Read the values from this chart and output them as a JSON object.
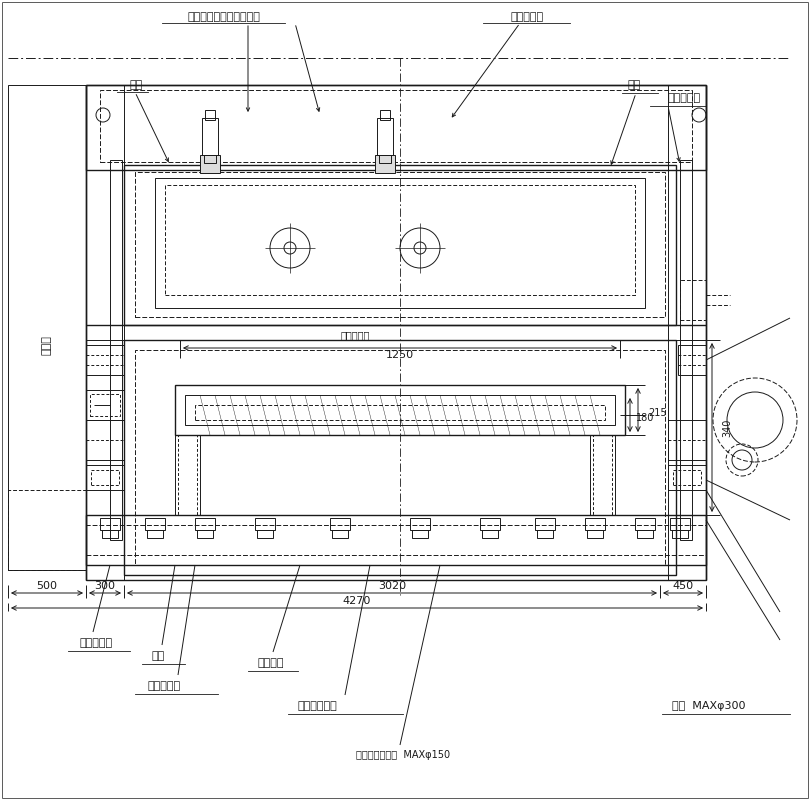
{
  "bg_color": "#ffffff",
  "line_color": "#1a1a1a",
  "fig_width": 8.11,
  "fig_height": 8.0,
  "labels": {
    "ue_bokkusu_rakka": "上ボックス落下防止装置",
    "shanetsu_ondokei": "放射温度計",
    "shita_waku": "下枚",
    "ue_waku": "上枚",
    "ue_bokkusu": "上ボックス",
    "seigyo_ban": "制御盤",
    "shita_bokkusu": "下ボックス",
    "kiban": "基盤",
    "table_lbl": "テーブル",
    "oncho_base": "温調ベース",
    "saidai_waku_naisu": "最大枚内寸",
    "dim_1250": "1250",
    "dim_215": "215",
    "dim_180": "180",
    "dim_340": "340",
    "dim_500": "500",
    "dim_300": "300",
    "dim_3020": "3020",
    "dim_450": "450",
    "dim_4270": "4270",
    "saidai_seihin_takasa": "最大製品高さ",
    "separator_makitori": "セパレータ巻取  MAXφ150",
    "genhan_max300": "原反  MAXφ300"
  }
}
